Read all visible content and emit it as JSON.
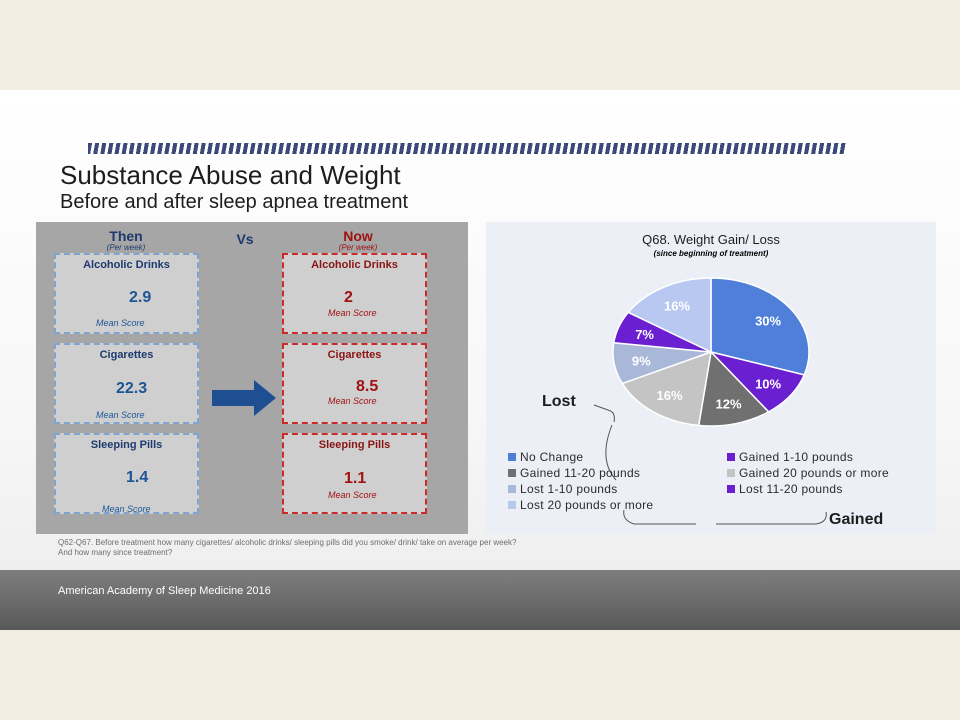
{
  "slide": {
    "title": "Substance Abuse and Weight",
    "subtitle": "Before and after sleep apnea treatment",
    "footnote_line1": "Q62-Q67. Before treatment how many cigarettes/ alcoholic drinks/ sleeping pills did you smoke/ drink/ take on average per week?",
    "footnote_line2": "And how many since treatment?",
    "footer": "American Academy of Sleep Medicine 2016"
  },
  "comparison": {
    "then_label": "Then",
    "then_sub": "(Per week)",
    "vs_label": "Vs",
    "now_label": "Now",
    "now_sub": "(Per week)",
    "mean_label": "Mean Score",
    "rows": [
      {
        "label": "Alcoholic Drinks",
        "then": "2.9",
        "now": "2"
      },
      {
        "label": "Cigarettes",
        "then": "22.3",
        "now": "8.5"
      },
      {
        "label": "Sleeping Pills",
        "then": "1.4",
        "now": "1.1"
      }
    ]
  },
  "colors": {
    "arrow": "#1f4f93",
    "then_border": "#7fa4cf",
    "now_border": "#cc2a2a"
  },
  "chart_data": {
    "type": "pie",
    "title": "Q68. Weight Gain/ Loss",
    "subtitle": "(since beginning of treatment)",
    "annotations": [
      "Lost",
      "Gained"
    ],
    "slices": [
      {
        "name": "No Change",
        "value": 30,
        "label": "30%",
        "color": "#4f7fd8"
      },
      {
        "name": "Gained 1-10 pounds",
        "value": 10,
        "label": "10%",
        "color": "#6a1fd0"
      },
      {
        "name": "Gained 11-20 pounds",
        "value": 12,
        "label": "12%",
        "color": "#707070"
      },
      {
        "name": "Gained 20 pounds or more",
        "value": 16,
        "label": "16%",
        "color": "#c4c4c4"
      },
      {
        "name": "Lost 1-10 pounds",
        "value": 9,
        "label": "9%",
        "color": "#a9b8d9"
      },
      {
        "name": "Lost 11-20 pounds",
        "value": 7,
        "label": "7%",
        "color": "#6a1fd0"
      },
      {
        "name": "Lost 20 pounds or more",
        "value": 16,
        "label": "16%",
        "color": "#b8c8f0"
      }
    ]
  }
}
